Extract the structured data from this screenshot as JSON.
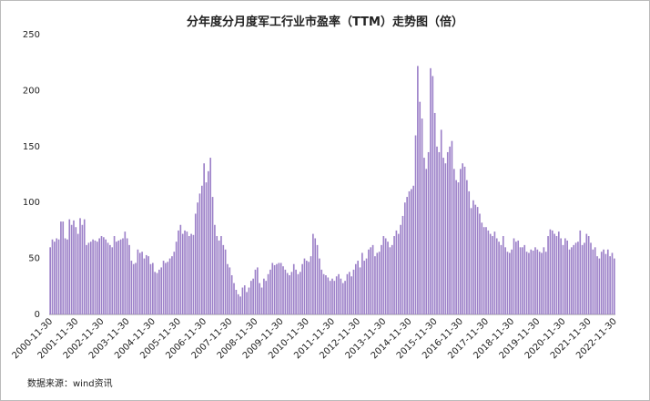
{
  "chart_data": {
    "type": "bar",
    "title": "分年度分月度军工行业市盈率（TTM）走势图（倍）",
    "source": "数据来源：wind资讯",
    "color": "#9c80c8",
    "ylim": [
      0,
      250
    ],
    "yticks": [
      0,
      50,
      100,
      150,
      200,
      250
    ],
    "grid": false,
    "categories": [
      "2000-11-30",
      null,
      null,
      null,
      null,
      null,
      null,
      null,
      null,
      null,
      null,
      null,
      "2001-11-30",
      null,
      null,
      null,
      null,
      null,
      null,
      null,
      null,
      null,
      null,
      null,
      "2002-11-30",
      null,
      null,
      null,
      null,
      null,
      null,
      null,
      null,
      null,
      null,
      null,
      "2003-11-30",
      null,
      null,
      null,
      null,
      null,
      null,
      null,
      null,
      null,
      null,
      null,
      "2004-11-30",
      null,
      null,
      null,
      null,
      null,
      null,
      null,
      null,
      null,
      null,
      null,
      "2005-11-30",
      null,
      null,
      null,
      null,
      null,
      null,
      null,
      null,
      null,
      null,
      null,
      "2006-11-30",
      null,
      null,
      null,
      null,
      null,
      null,
      null,
      null,
      null,
      null,
      null,
      "2007-11-30",
      null,
      null,
      null,
      null,
      null,
      null,
      null,
      null,
      null,
      null,
      null,
      "2008-11-30",
      null,
      null,
      null,
      null,
      null,
      null,
      null,
      null,
      null,
      null,
      null,
      "2009-11-30",
      null,
      null,
      null,
      null,
      null,
      null,
      null,
      null,
      null,
      null,
      null,
      "2010-11-30",
      null,
      null,
      null,
      null,
      null,
      null,
      null,
      null,
      null,
      null,
      null,
      "2011-11-30",
      null,
      null,
      null,
      null,
      null,
      null,
      null,
      null,
      null,
      null,
      null,
      "2012-11-30",
      null,
      null,
      null,
      null,
      null,
      null,
      null,
      null,
      null,
      null,
      null,
      "2013-11-30",
      null,
      null,
      null,
      null,
      null,
      null,
      null,
      null,
      null,
      null,
      null,
      "2014-11-30",
      null,
      null,
      null,
      null,
      null,
      null,
      null,
      null,
      null,
      null,
      null,
      "2015-11-30",
      null,
      null,
      null,
      null,
      null,
      null,
      null,
      null,
      null,
      null,
      null,
      "2016-11-30",
      null,
      null,
      null,
      null,
      null,
      null,
      null,
      null,
      null,
      null,
      null,
      "2017-11-30",
      null,
      null,
      null,
      null,
      null,
      null,
      null,
      null,
      null,
      null,
      null,
      "2018-11-30",
      null,
      null,
      null,
      null,
      null,
      null,
      null,
      null,
      null,
      null,
      null,
      "2019-11-30",
      null,
      null,
      null,
      null,
      null,
      null,
      null,
      null,
      null,
      null,
      null,
      "2020-11-30",
      null,
      null,
      null,
      null,
      null,
      null,
      null,
      null,
      null,
      null,
      null,
      "2021-11-30",
      null,
      null,
      null,
      null,
      null,
      null,
      null,
      null,
      null,
      null,
      null,
      "2022-11-30"
    ],
    "values": [
      60,
      67,
      65,
      68,
      67,
      83,
      83,
      68,
      67,
      85,
      80,
      84,
      78,
      72,
      86,
      80,
      85,
      62,
      64,
      65,
      67,
      66,
      65,
      68,
      70,
      69,
      67,
      64,
      62,
      60,
      70,
      65,
      66,
      67,
      68,
      74,
      68,
      62,
      48,
      45,
      46,
      58,
      55,
      56,
      50,
      53,
      52,
      45,
      46,
      38,
      37,
      40,
      42,
      48,
      46,
      47,
      50,
      52,
      56,
      65,
      75,
      80,
      72,
      75,
      74,
      70,
      72,
      71,
      90,
      100,
      108,
      115,
      135,
      118,
      128,
      140,
      105,
      80,
      70,
      66,
      70,
      62,
      58,
      45,
      42,
      35,
      28,
      22,
      18,
      16,
      24,
      26,
      20,
      24,
      30,
      32,
      40,
      42,
      28,
      24,
      32,
      30,
      36,
      40,
      46,
      44,
      45,
      46,
      46,
      43,
      40,
      37,
      35,
      38,
      45,
      40,
      36,
      38,
      45,
      50,
      48,
      47,
      52,
      72,
      68,
      62,
      50,
      40,
      36,
      35,
      33,
      30,
      32,
      30,
      34,
      36,
      32,
      28,
      30,
      36,
      38,
      34,
      40,
      45,
      48,
      42,
      55,
      48,
      50,
      58,
      60,
      62,
      52,
      55,
      56,
      62,
      70,
      68,
      65,
      60,
      62,
      70,
      75,
      72,
      80,
      88,
      100,
      105,
      110,
      112,
      115,
      160,
      222,
      190,
      175,
      140,
      130,
      145,
      220,
      213,
      180,
      150,
      145,
      165,
      140,
      135,
      145,
      150,
      155,
      130,
      120,
      118,
      130,
      135,
      132,
      120,
      110,
      95,
      102,
      98,
      96,
      90,
      82,
      78,
      78,
      75,
      72,
      70,
      74,
      68,
      65,
      62,
      70,
      60,
      56,
      55,
      58,
      68,
      65,
      66,
      60,
      60,
      62,
      56,
      55,
      58,
      57,
      60,
      58,
      56,
      55,
      60,
      56,
      70,
      76,
      75,
      72,
      70,
      74,
      68,
      62,
      68,
      66,
      58,
      60,
      62,
      64,
      65,
      75,
      62,
      64,
      72,
      70,
      64,
      58,
      60,
      52,
      50,
      56,
      58,
      54,
      58,
      52,
      55,
      50
    ]
  }
}
